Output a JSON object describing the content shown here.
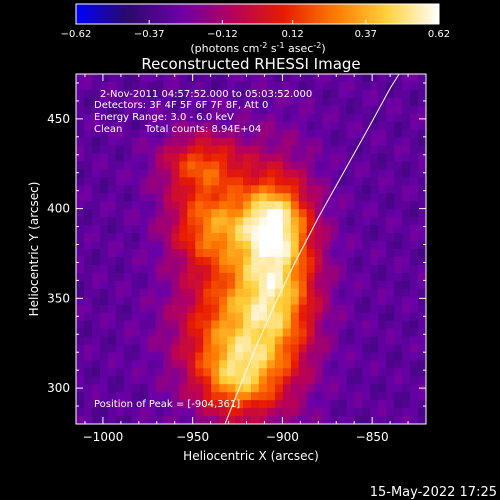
{
  "colorbar": {
    "ticks": [
      "-0.62",
      "-0.37",
      "-0.12",
      "0.12",
      "0.37",
      "0.62"
    ],
    "vmin": -0.62,
    "vmax": 0.62,
    "colormap": [
      "#0000ff",
      "#2a0a6a",
      "#6a00a8",
      "#b5005e",
      "#e81b00",
      "#ff7a00",
      "#ffd23c",
      "#ffffff"
    ]
  },
  "chart_data": {
    "type": "heatmap",
    "title": "Reconstructed RHESSI Image",
    "units_label": "(photons cm",
    "xlabel": "Heliocentric X (arcsec)",
    "ylabel": "Heliocentric Y (arcsec)",
    "xlim": [
      -1015,
      -820
    ],
    "ylim": [
      280,
      475
    ],
    "x_ticks": [
      {
        "value": -1000,
        "label": "−1000"
      },
      {
        "value": -950,
        "label": "−950"
      },
      {
        "value": -900,
        "label": "−900"
      },
      {
        "value": -850,
        "label": "−850"
      }
    ],
    "y_ticks": [
      {
        "value": 300,
        "label": "300"
      },
      {
        "value": 350,
        "label": "350"
      },
      {
        "value": 400,
        "label": "400"
      },
      {
        "value": 450,
        "label": "450"
      }
    ],
    "annotations": {
      "time_range": "2-Nov-2011 04:57:52.000 to 05:03:52.000",
      "detectors": "Detectors: 3F 4F 5F 6F 7F 8F, Att 0",
      "energy_range": "Energy Range: 3.0 - 6.0 keV",
      "method": "Clean",
      "total_counts": "Total counts: 8.94E+04",
      "peak_position": "Position of Peak = [-904,361]"
    },
    "peak": {
      "x": -904,
      "y": 361
    },
    "sources": [
      {
        "x": -904,
        "y": 361,
        "amp": 0.62,
        "sx": 16,
        "sy": 40
      },
      {
        "x": -940,
        "y": 391,
        "amp": 0.42,
        "sx": 16,
        "sy": 16
      },
      {
        "x": -905,
        "y": 393,
        "amp": 0.33,
        "sx": 12,
        "sy": 14
      },
      {
        "x": -945,
        "y": 425,
        "amp": 0.35,
        "sx": 16,
        "sy": 12
      },
      {
        "x": -932,
        "y": 332,
        "amp": 0.38,
        "sx": 20,
        "sy": 28
      },
      {
        "x": -925,
        "y": 305,
        "amp": 0.3,
        "sx": 14,
        "sy": 14
      }
    ],
    "background_level": -0.3,
    "limb_curve": [
      {
        "x": -932,
        "y": 280
      },
      {
        "x": -924,
        "y": 300
      },
      {
        "x": -916,
        "y": 320
      },
      {
        "x": -905,
        "y": 345
      },
      {
        "x": -893,
        "y": 370
      },
      {
        "x": -880,
        "y": 395
      },
      {
        "x": -866,
        "y": 420
      },
      {
        "x": -852,
        "y": 445
      },
      {
        "x": -840,
        "y": 467
      },
      {
        "x": -835,
        "y": 475
      }
    ]
  },
  "timestamp": "15-May-2022 17:25"
}
